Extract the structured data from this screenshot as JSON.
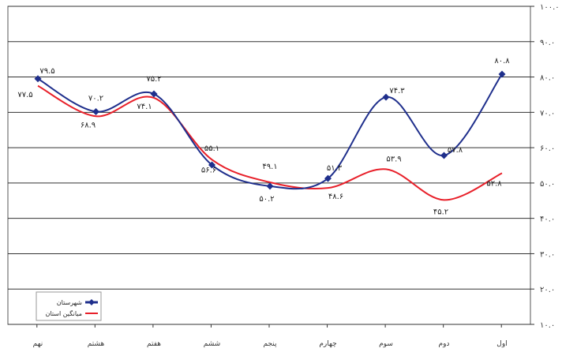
{
  "chart_data": {
    "type": "line",
    "categories": [
      "نهم",
      "هشتم",
      "هفتم",
      "ششم",
      "پنجم",
      "چهارم",
      "سوم",
      "دوم",
      "اول"
    ],
    "ylim": [
      10,
      100
    ],
    "yticks": [
      "۱۰.۰",
      "۲۰.۰",
      "۳۰.۰",
      "۴۰.۰",
      "۵۰.۰",
      "۶۰.۰",
      "۷۰.۰",
      "۸۰.۰",
      "۹۰.۰",
      "۱۰۰.۰"
    ],
    "grid": true,
    "legend_position": "bottom-left",
    "series": [
      {
        "name": "شهرستان",
        "color": "#1f2f8c",
        "marker": "diamond",
        "values": [
          79.5,
          70.2,
          75.2,
          55.1,
          49.1,
          51.3,
          74.3,
          57.8,
          80.8
        ],
        "labels": [
          "۷۹.۵",
          "۷۰.۲",
          "۷۵.۲",
          "۵۵.۱",
          "۴۹.۱",
          "۵۱.۳",
          "۷۴.۳",
          "۵۷.۸",
          "۸۰.۸"
        ]
      },
      {
        "name": "میانگین استان",
        "color": "#e8202a",
        "values": [
          77.5,
          68.9,
          74.1,
          56.6,
          50.2,
          48.6,
          53.9,
          45.2,
          52.8
        ],
        "labels": [
          "۷۷.۵",
          "۶۸.۹",
          "۷۴.۱",
          "۵۶.۶",
          "۵۰.۲",
          "۴۸.۶",
          "۵۳.۹",
          "۴۵.۲",
          "۵۲.۸"
        ]
      }
    ]
  }
}
